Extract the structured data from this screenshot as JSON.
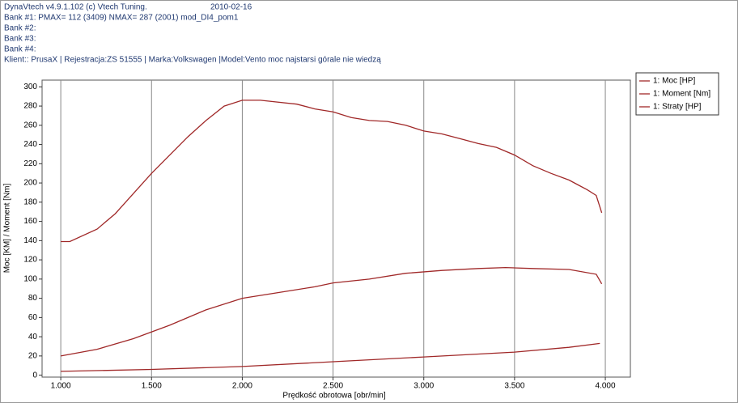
{
  "header": {
    "app": "DynaVtech v4.9.1.102 (c) Vtech Tuning.",
    "date": "2010-02-16",
    "lines": [
      "Bank #1: PMAX= 112 (3409)    NMAX= 287 (2001)   mod_DI4_pom1",
      "Bank #2:",
      "Bank #3:",
      "Bank #4:",
      "Klient:: PrusaX | Rejestracja:ZS 51555 | Marka:Volkswagen |Model:Vento moc najstarsi górale nie wiedzą"
    ]
  },
  "chart_data": {
    "type": "line",
    "x_label": "Prędkość obrotowa [obr/min]",
    "y_label": "Moc [KM] / Moment [Nm]",
    "xlim": [
      897,
      4138
    ],
    "ylim": [
      -2,
      307
    ],
    "xticks": [
      {
        "value": 1000,
        "label": "1.000"
      },
      {
        "value": 1500,
        "label": "1.500"
      },
      {
        "value": 2000,
        "label": "2.000"
      },
      {
        "value": 2500,
        "label": "2.500"
      },
      {
        "value": 3000,
        "label": "3.000"
      },
      {
        "value": 3500,
        "label": "3.500"
      },
      {
        "value": 4000,
        "label": "4.000"
      }
    ],
    "yticks": [
      0,
      20,
      40,
      60,
      80,
      100,
      120,
      140,
      160,
      180,
      200,
      220,
      240,
      260,
      280,
      300
    ],
    "grid": "x",
    "legend": "outside-right-top",
    "series": [
      {
        "name": "1: Moc [HP]",
        "color": "#a02828",
        "x": [
          1000,
          1200,
          1400,
          1600,
          1800,
          2000,
          2200,
          2400,
          2500,
          2700,
          2900,
          3100,
          3300,
          3450,
          3600,
          3800,
          3950,
          3980
        ],
        "values": [
          20,
          27,
          38,
          52,
          68,
          80,
          86,
          92,
          96,
          100,
          106,
          109,
          111,
          112,
          111,
          110,
          105,
          95
        ]
      },
      {
        "name": "1: Moment [Nm]",
        "color": "#a02828",
        "x": [
          1000,
          1050,
          1200,
          1300,
          1500,
          1700,
          1800,
          1900,
          2000,
          2100,
          2300,
          2400,
          2500,
          2600,
          2700,
          2800,
          2900,
          3000,
          3100,
          3200,
          3300,
          3400,
          3500,
          3600,
          3700,
          3800,
          3850,
          3900,
          3950,
          3980
        ],
        "values": [
          139,
          139,
          152,
          168,
          210,
          248,
          265,
          280,
          286,
          286,
          282,
          277,
          274,
          268,
          265,
          264,
          260,
          254,
          251,
          246,
          241,
          237,
          229,
          218,
          210,
          203,
          198,
          193,
          187,
          169
        ]
      },
      {
        "name": "1: Straty [HP]",
        "color": "#a02828",
        "x": [
          1000,
          1500,
          2000,
          2500,
          3000,
          3500,
          3800,
          3970
        ],
        "values": [
          4,
          6,
          9,
          14,
          19,
          24,
          29,
          33
        ]
      }
    ]
  }
}
